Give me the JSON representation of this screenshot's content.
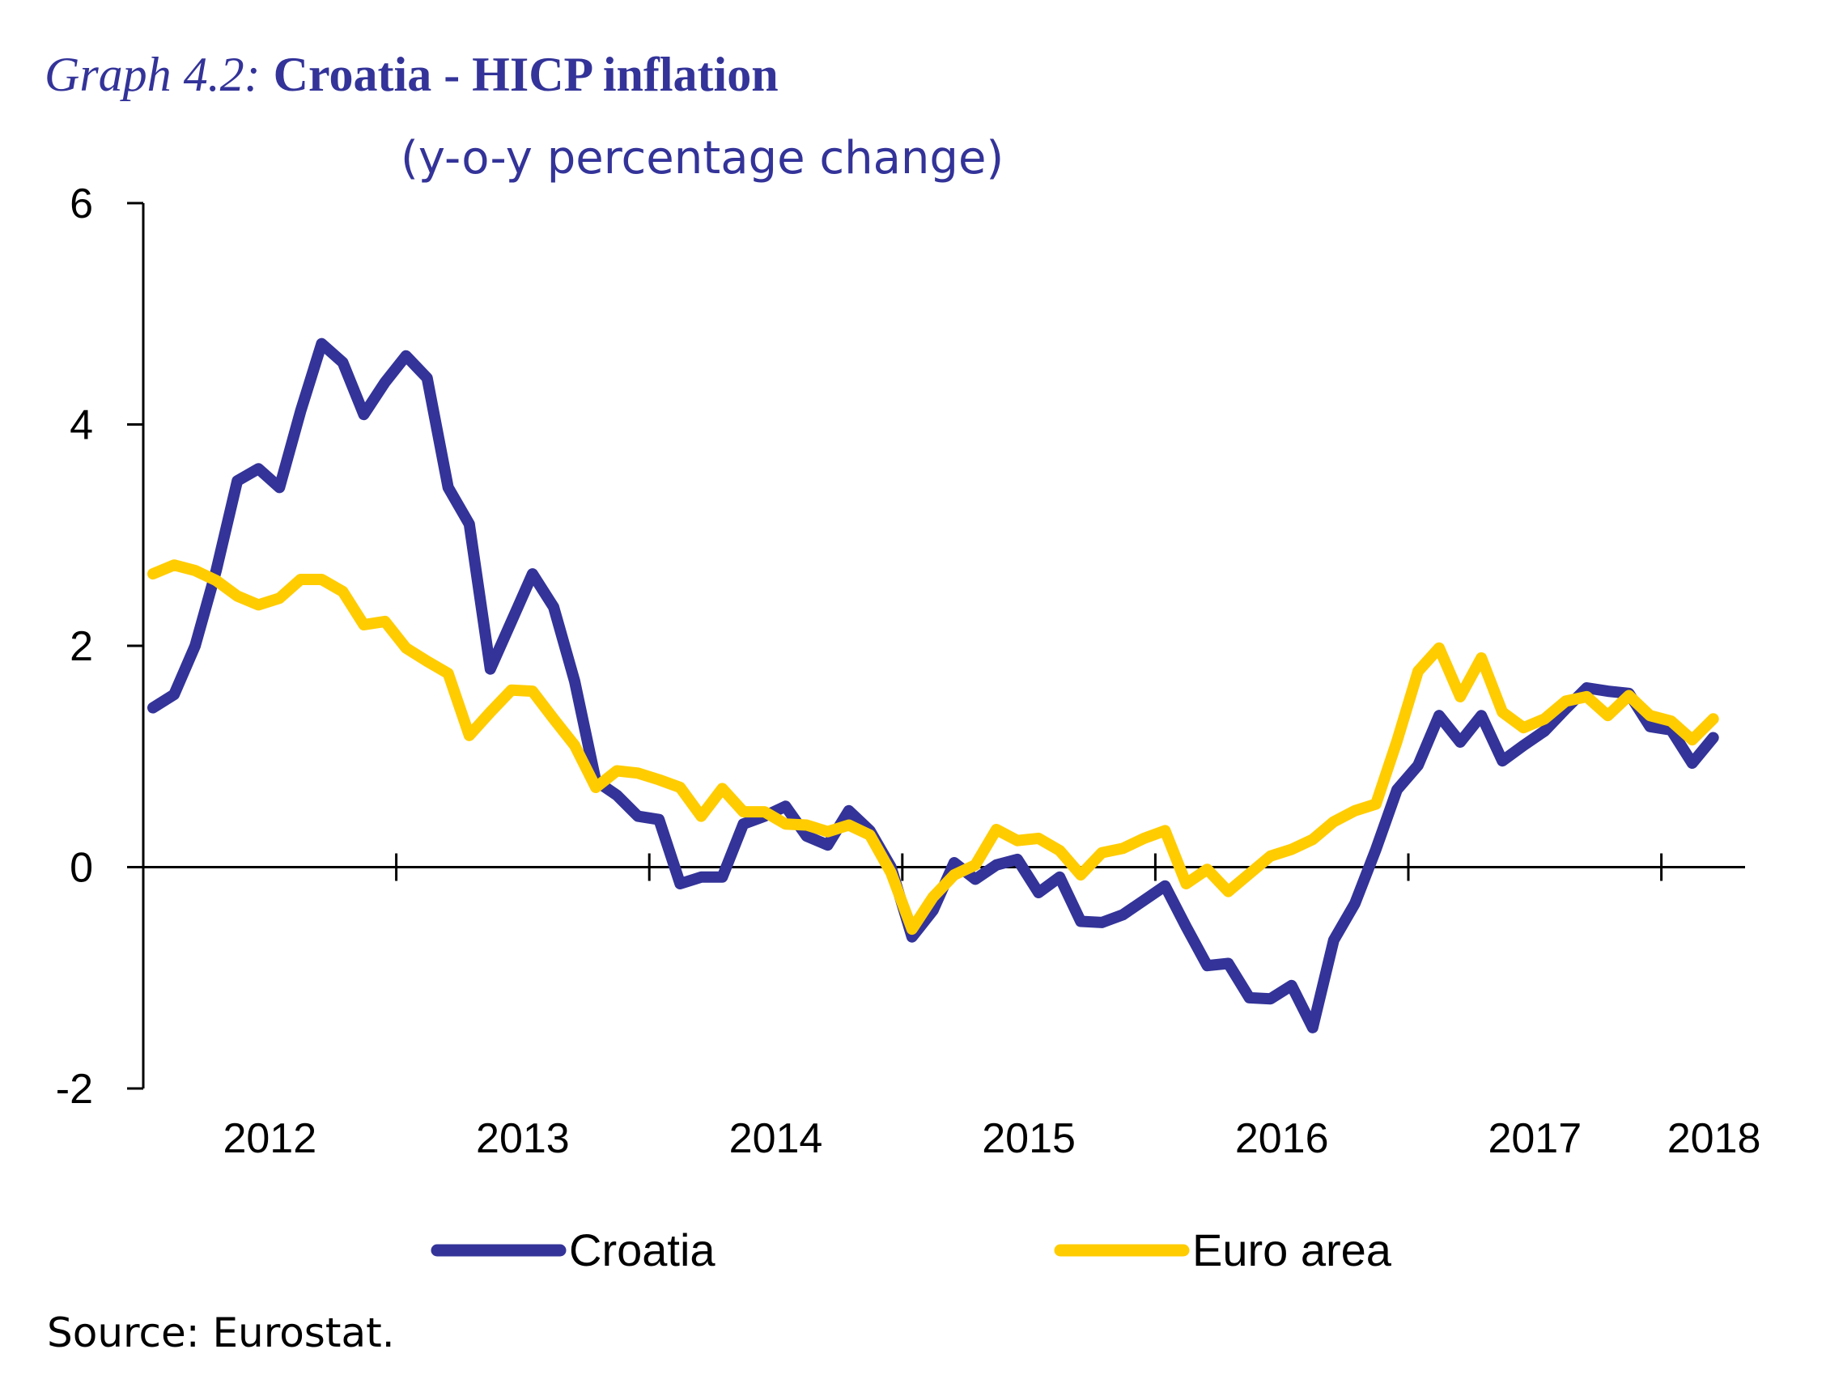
{
  "title": {
    "prefix": "Graph 4.2:",
    "main": "Croatia - HICP inflation",
    "subtitle": "(y-o-y percentage change)"
  },
  "source": "Source: Eurostat.",
  "chart_data": {
    "type": "line",
    "title": "Graph 4.2: Croatia - HICP inflation",
    "subtitle": "(y-o-y percentage change)",
    "xlabel": "",
    "ylabel": "",
    "x_start": "2012-01",
    "x_frequency": "monthly",
    "x_tick_labels": [
      "2012",
      "2013",
      "2014",
      "2015",
      "2016",
      "2017",
      "2018"
    ],
    "y_ticks": [
      -2,
      0,
      2,
      4,
      6
    ],
    "ylim": [
      -2,
      6
    ],
    "grid": false,
    "legend": "bottom",
    "series": [
      {
        "name": "Croatia",
        "color": "#333399",
        "values": [
          1.44,
          1.56,
          2.0,
          2.68,
          3.49,
          3.6,
          3.43,
          4.12,
          4.73,
          4.56,
          4.09,
          4.38,
          4.62,
          4.42,
          3.43,
          3.1,
          1.79,
          2.22,
          2.65,
          2.35,
          1.68,
          0.78,
          0.65,
          0.46,
          0.43,
          -0.15,
          -0.09,
          -0.09,
          0.39,
          0.46,
          0.55,
          0.28,
          0.2,
          0.51,
          0.33,
          0.0,
          -0.63,
          -0.39,
          0.04,
          -0.11,
          0.02,
          0.07,
          -0.23,
          -0.09,
          -0.49,
          -0.5,
          -0.43,
          -0.3,
          -0.17,
          -0.54,
          -0.89,
          -0.87,
          -1.18,
          -1.19,
          -1.07,
          -1.45,
          -0.66,
          -0.33,
          0.16,
          0.7,
          0.92,
          1.37,
          1.13,
          1.37,
          0.96,
          1.1,
          1.23,
          1.43,
          1.62,
          1.59,
          1.57,
          1.27,
          1.24,
          0.94,
          1.17
        ]
      },
      {
        "name": "Euro area",
        "color": "#FFCC00",
        "values": [
          2.65,
          2.73,
          2.68,
          2.59,
          2.45,
          2.37,
          2.43,
          2.6,
          2.6,
          2.49,
          2.19,
          2.22,
          1.98,
          1.86,
          1.75,
          1.19,
          1.4,
          1.6,
          1.59,
          1.34,
          1.1,
          0.72,
          0.87,
          0.85,
          0.79,
          0.72,
          0.46,
          0.71,
          0.5,
          0.5,
          0.39,
          0.38,
          0.32,
          0.38,
          0.29,
          -0.05,
          -0.56,
          -0.27,
          -0.07,
          0.02,
          0.34,
          0.24,
          0.26,
          0.15,
          -0.07,
          0.13,
          0.17,
          0.26,
          0.33,
          -0.15,
          -0.02,
          -0.22,
          -0.06,
          0.1,
          0.16,
          0.25,
          0.41,
          0.51,
          0.57,
          1.14,
          1.77,
          1.98,
          1.54,
          1.89,
          1.4,
          1.26,
          1.34,
          1.5,
          1.54,
          1.37,
          1.55,
          1.37,
          1.32,
          1.15,
          1.34
        ]
      }
    ]
  }
}
